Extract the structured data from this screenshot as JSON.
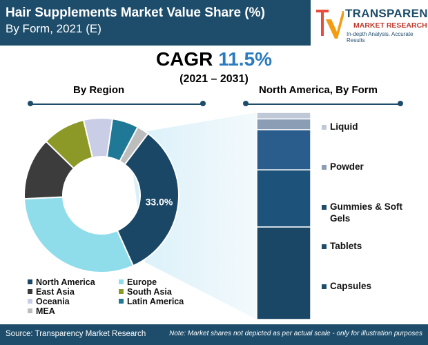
{
  "title": {
    "line1": "Hair Supplements Market Value Share (%)",
    "line2": "By Form, 2021 (E)"
  },
  "brand": {
    "name": "TRANSPARENCY",
    "sub": "MARKET RESEARCH",
    "tagline": "In-depth Analysis. Accurate Results"
  },
  "cagr": {
    "prefix": "CAGR",
    "value": "11.5%",
    "years": "(2021 – 2031)"
  },
  "sections": {
    "left": "By Region",
    "right": "North America, By Form"
  },
  "footer": {
    "source": "Source: Transparency Market Research",
    "note": "Note: Market shares not depicted as per actual scale - only for illustration purposes"
  },
  "colors": {
    "header": "#1e4d6b",
    "accent": "#2a7bbf"
  },
  "chart_data": [
    {
      "type": "pie",
      "title": "By Region",
      "variant": "donut",
      "slices": [
        {
          "name": "North America",
          "value": 33.0,
          "color": "#1a4766",
          "label": "33.0%"
        },
        {
          "name": "Europe",
          "value": 31.0,
          "color": "#8fdcea"
        },
        {
          "name": "East Asia",
          "value": 13.0,
          "color": "#3c3c3c"
        },
        {
          "name": "South Asia",
          "value": 9.0,
          "color": "#8c9926"
        },
        {
          "name": "Oceania",
          "value": 6.0,
          "color": "#c9cde6"
        },
        {
          "name": "Latin America",
          "value": 5.5,
          "color": "#1e7896"
        },
        {
          "name": "MEA",
          "value": 2.5,
          "color": "#bdbdbd"
        }
      ],
      "legend": [
        "North America",
        "Europe",
        "East Asia",
        "South Asia",
        "Oceania",
        "Latin America",
        "MEA"
      ]
    },
    {
      "type": "bar",
      "stacked": true,
      "title": "North America, By Form",
      "segments": [
        {
          "name": "Capsules",
          "value": 44.7,
          "color": "#1a4766"
        },
        {
          "name": "Tablets",
          "value": 27.6,
          "color": "#1d527a"
        },
        {
          "name": "Gummies & Soft Gels",
          "value": 19.4,
          "color": "#2a5d8c"
        },
        {
          "name": "Powder",
          "value": 5.2,
          "color": "#8a9db5"
        },
        {
          "name": "Liquid",
          "value": 3.1,
          "color": "#bec8d6"
        }
      ]
    }
  ]
}
